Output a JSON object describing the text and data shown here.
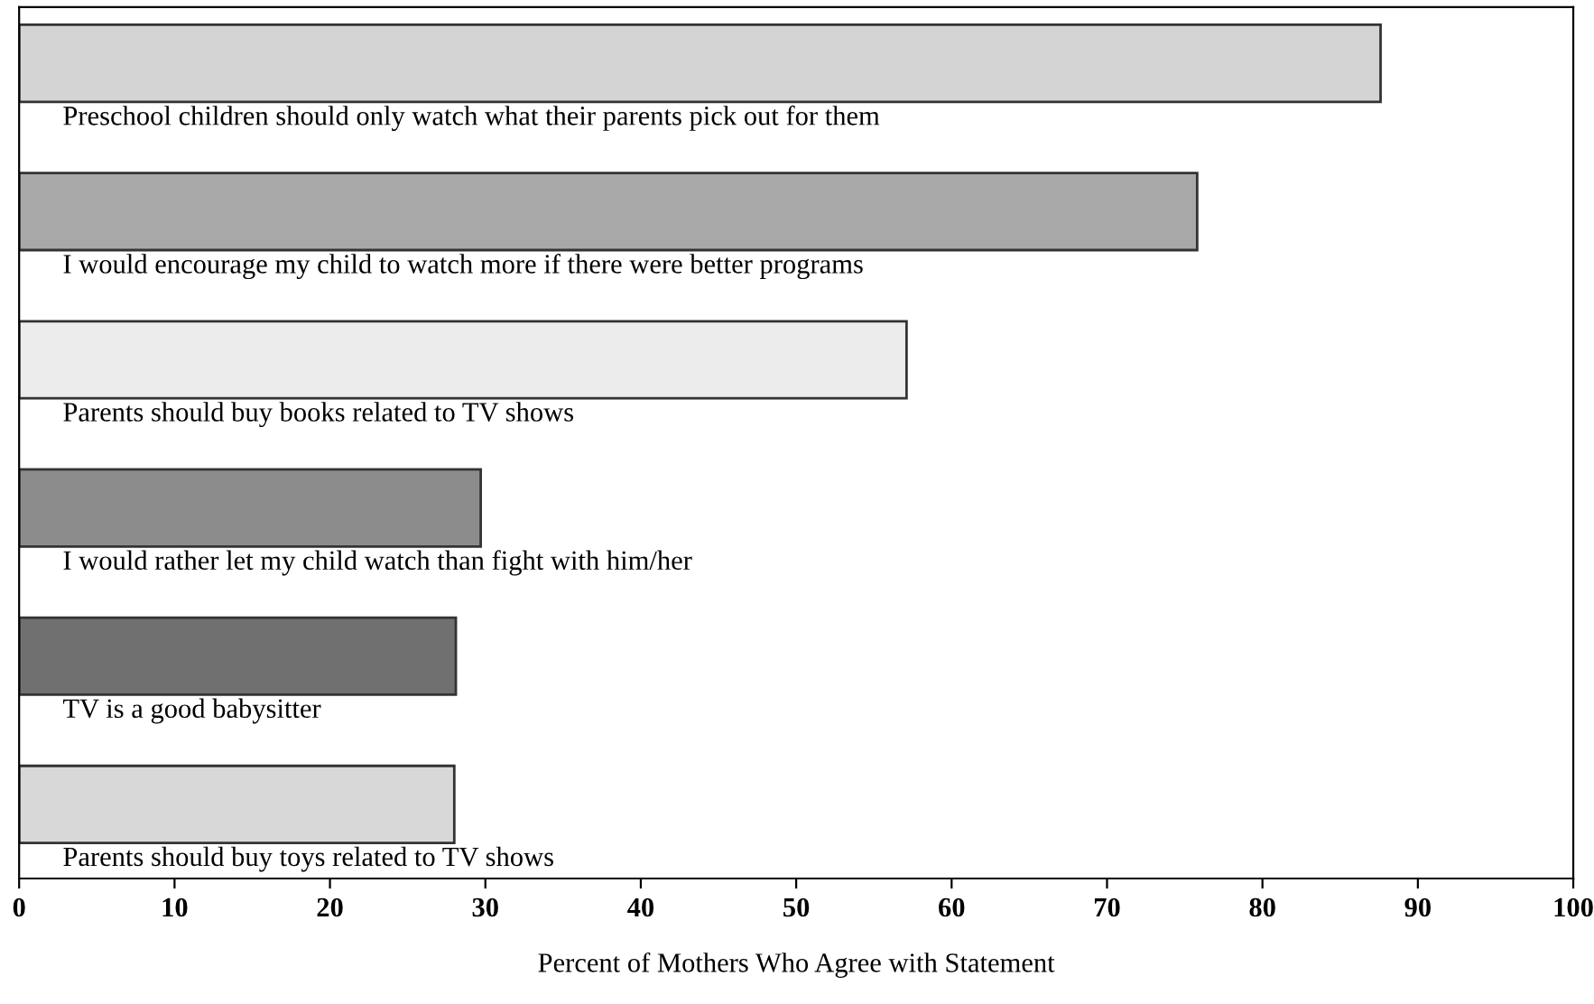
{
  "chart_data": {
    "type": "bar",
    "orientation": "horizontal",
    "xlabel": "Percent of Mothers Who Agree with Statement",
    "categories": [
      "Preschool children should only watch what their parents pick out for them",
      "I would encourage my child to watch more if there were better programs",
      "Parents should buy books related to TV shows",
      "I would rather let my child watch than fight with him/her",
      "TV is a good babysitter",
      "Parents should buy toys related to TV shows"
    ],
    "values": [
      87.6,
      75.8,
      57.1,
      29.7,
      28.1,
      28.0
    ],
    "colors": [
      "#d4d4d4",
      "#a8a8a8",
      "#ececec",
      "#8c8c8c",
      "#707070",
      "#d8d8d8"
    ],
    "xlim": [
      0,
      100
    ],
    "xticks": [
      0,
      10,
      20,
      30,
      40,
      50,
      60,
      70,
      80,
      90,
      100
    ],
    "grid": false,
    "legend": false
  }
}
